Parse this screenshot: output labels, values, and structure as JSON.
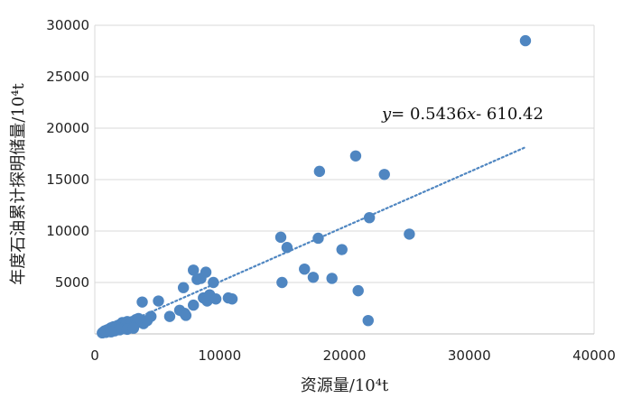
{
  "chart_data": {
    "type": "scatter",
    "title": "",
    "xlabel": "资源量/10⁴t",
    "ylabel": "年度石油累计探明储量/10⁴t",
    "xlim": [
      0,
      40000
    ],
    "ylim": [
      0,
      30000
    ],
    "xticks": [
      0,
      10000,
      20000,
      30000,
      40000
    ],
    "xtick_labels": [
      "0",
      "10000",
      "20000",
      "30000",
      "40000"
    ],
    "yticks": [
      5000,
      10000,
      15000,
      20000,
      25000,
      30000
    ],
    "ytick_labels": [
      "5000",
      "10000",
      "15000",
      "20000",
      "25000",
      "30000"
    ],
    "grid": "y",
    "point_color": "#4f86c1",
    "trendline": {
      "style": "dotted",
      "slope": 0.5436,
      "intercept": -610.42,
      "x_range": [
        500,
        34500
      ],
      "equation_y": "y",
      "equation_rest": "= 0.5436",
      "equation_x": "x",
      "equation_tail": "- 610.42"
    },
    "points": [
      [
        600,
        100
      ],
      [
        700,
        200
      ],
      [
        800,
        300
      ],
      [
        900,
        150
      ],
      [
        1000,
        400
      ],
      [
        1100,
        250
      ],
      [
        1200,
        500
      ],
      [
        1300,
        600
      ],
      [
        1400,
        350
      ],
      [
        1500,
        700
      ],
      [
        1600,
        300
      ],
      [
        1700,
        600
      ],
      [
        1800,
        800
      ],
      [
        1900,
        450
      ],
      [
        2000,
        900
      ],
      [
        2100,
        650
      ],
      [
        2200,
        1100
      ],
      [
        2300,
        700
      ],
      [
        2400,
        500
      ],
      [
        2500,
        950
      ],
      [
        2600,
        1200
      ],
      [
        2700,
        800
      ],
      [
        2800,
        600
      ],
      [
        2900,
        1050
      ],
      [
        3000,
        1200
      ],
      [
        3100,
        700
      ],
      [
        3200,
        900
      ],
      [
        3300,
        1400
      ],
      [
        3400,
        1100
      ],
      [
        3500,
        1500
      ],
      [
        3700,
        1300
      ],
      [
        3800,
        3100
      ],
      [
        3900,
        1000
      ],
      [
        4200,
        1300
      ],
      [
        4500,
        1700
      ],
      [
        1500,
        300
      ],
      [
        2000,
        400
      ],
      [
        2600,
        450
      ],
      [
        3100,
        550
      ],
      [
        1300,
        200
      ],
      [
        5100,
        3200
      ],
      [
        6000,
        1700
      ],
      [
        6800,
        2300
      ],
      [
        7100,
        4500
      ],
      [
        7200,
        2000
      ],
      [
        7300,
        1800
      ],
      [
        7900,
        6200
      ],
      [
        7900,
        2800
      ],
      [
        8200,
        5300
      ],
      [
        8500,
        5400
      ],
      [
        8700,
        3500
      ],
      [
        8900,
        6000
      ],
      [
        9000,
        3200
      ],
      [
        9200,
        3800
      ],
      [
        9500,
        5000
      ],
      [
        9700,
        3400
      ],
      [
        10700,
        3500
      ],
      [
        11000,
        3400
      ],
      [
        14900,
        9400
      ],
      [
        15000,
        5000
      ],
      [
        15400,
        8400
      ],
      [
        16800,
        6300
      ],
      [
        17500,
        5500
      ],
      [
        17900,
        9300
      ],
      [
        18000,
        15800
      ],
      [
        19000,
        5400
      ],
      [
        19800,
        8200
      ],
      [
        20900,
        17300
      ],
      [
        21100,
        4200
      ],
      [
        21900,
        1300
      ],
      [
        22000,
        11300
      ],
      [
        23200,
        15500
      ],
      [
        25200,
        9700
      ],
      [
        34500,
        28500
      ]
    ]
  }
}
